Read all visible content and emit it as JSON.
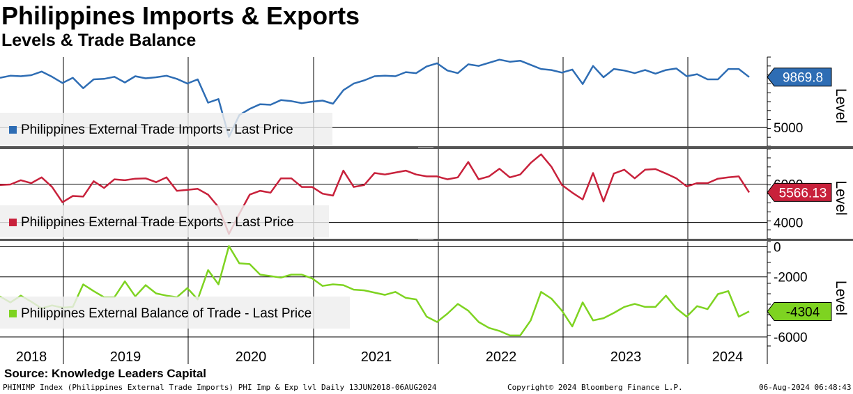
{
  "header": {
    "title": "Philippines Imports & Exports",
    "subtitle": "Levels & Trade Balance"
  },
  "chart_data": [
    {
      "type": "line",
      "panel": "imports",
      "series_name": "Philippines External Trade Imports - Last Price",
      "color": "#2e6db4",
      "y_axis_label": "Level",
      "ylim": [
        3200,
        11800
      ],
      "ticks": [
        {
          "value": 5000,
          "label": "5000"
        }
      ],
      "last_value": 9869.8,
      "last_label": "9869.8",
      "values": [
        9800,
        10000,
        9950,
        10050,
        10400,
        9900,
        9300,
        9800,
        8800,
        9650,
        9700,
        9900,
        9350,
        9950,
        9750,
        9850,
        10000,
        9700,
        9250,
        9650,
        7400,
        7750,
        4100,
        6200,
        6800,
        7250,
        7200,
        7650,
        7550,
        7350,
        7500,
        7600,
        7300,
        8600,
        9250,
        9550,
        9950,
        10000,
        9950,
        10350,
        10250,
        10900,
        11200,
        10500,
        10250,
        11100,
        10950,
        11250,
        11550,
        11350,
        11450,
        11050,
        10650,
        10550,
        10300,
        10600,
        9200,
        10950,
        9850,
        10650,
        10500,
        10250,
        10550,
        10200,
        10550,
        10700,
        9950,
        10150,
        9650,
        9650,
        10650,
        10650,
        9869.8
      ]
    },
    {
      "type": "line",
      "panel": "exports",
      "series_name": "Philippines External Trade Exports - Last Price",
      "color": "#c8213b",
      "y_axis_label": "Level",
      "ylim": [
        3150,
        7830
      ],
      "ticks": [
        {
          "value": 4000,
          "label": "4000"
        },
        {
          "value": 6000,
          "label": "6000"
        }
      ],
      "last_value": 5566.13,
      "last_label": "5566.13",
      "values": [
        5950,
        5980,
        6200,
        6050,
        6350,
        5850,
        5050,
        5380,
        5350,
        6150,
        5800,
        6250,
        6200,
        6280,
        6300,
        6100,
        6350,
        5650,
        5700,
        5750,
        5450,
        4800,
        3400,
        4450,
        5450,
        5650,
        5550,
        6300,
        6300,
        5850,
        5850,
        5500,
        5400,
        6700,
        5850,
        5950,
        6580,
        6500,
        6600,
        6700,
        6500,
        6400,
        6400,
        6250,
        6350,
        7150,
        6250,
        6400,
        6800,
        6350,
        6500,
        7100,
        7550,
        6900,
        5950,
        5550,
        5200,
        6580,
        5100,
        6550,
        6750,
        6300,
        6750,
        6780,
        6550,
        6300,
        5880,
        6050,
        6050,
        6280,
        6350,
        6400,
        5566.13
      ]
    },
    {
      "type": "line",
      "panel": "balance",
      "series_name": "Philippines External Balance of Trade - Last Price",
      "color": "#7ed321",
      "y_axis_label": "Level",
      "ylim": [
        -6600,
        350
      ],
      "ticks": [
        {
          "value": 0,
          "label": "0"
        },
        {
          "value": -2000,
          "label": "-2000"
        },
        {
          "value": -6000,
          "label": "-6000"
        }
      ],
      "last_value": -4304,
      "last_label": "-4304",
      "values": [
        -3300,
        -3700,
        -3250,
        -3650,
        -4100,
        -3900,
        -4050,
        -4000,
        -2500,
        -2950,
        -3350,
        -3350,
        -2300,
        -3300,
        -2550,
        -3100,
        -3250,
        -3350,
        -2750,
        -3500,
        -1550,
        -2500,
        50,
        -1100,
        -1150,
        -1850,
        -1950,
        -2050,
        -1850,
        -1850,
        -2100,
        -2600,
        -2500,
        -2550,
        -2850,
        -2900,
        -3050,
        -3200,
        -3000,
        -3400,
        -3500,
        -4650,
        -5000,
        -4450,
        -3800,
        -4250,
        -5000,
        -5400,
        -5600,
        -5900,
        -5900,
        -4900,
        -3000,
        -3450,
        -4250,
        -5300,
        -3700,
        -4900,
        -4750,
        -4400,
        -4000,
        -3800,
        -4000,
        -4000,
        -3250,
        -4100,
        -4650,
        -3950,
        -4150,
        -3150,
        -2950,
        -4650,
        -4304
      ]
    }
  ],
  "x_axis": {
    "years": [
      "2018",
      "2019",
      "2020",
      "2021",
      "2022",
      "2023",
      "2024"
    ]
  },
  "footer": {
    "source": "Source: Knowledge Leaders Capital",
    "ticker": "PHIMIMP Index (Philippines External Trade Imports) PHI Imp & Exp lvl  Daily 13JUN2018-06AUG2024",
    "copyright": "Copyright© 2024 Bloomberg Finance L.P.",
    "timestamp": "06-Aug-2024 06:48:43"
  }
}
